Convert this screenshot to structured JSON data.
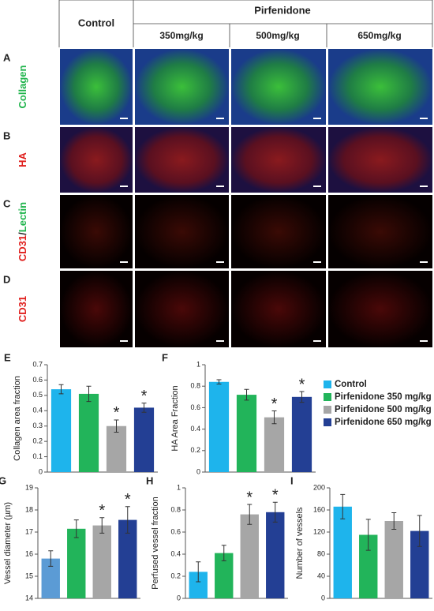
{
  "table": {
    "header": [
      "Control",
      "Pirfenidone"
    ],
    "doses": [
      "350mg/kg",
      "500mg/kg",
      "650mg/kg"
    ],
    "rows": [
      {
        "letter": "A",
        "label": [
          {
            "text": "Collagen",
            "color": "#1db34a"
          }
        ]
      },
      {
        "letter": "B",
        "label": [
          {
            "text": "HA",
            "color": "#e0201e"
          }
        ]
      },
      {
        "letter": "C",
        "label": [
          {
            "text": "CD31",
            "color": "#e0201e"
          },
          {
            "text": "/",
            "color": "#222222"
          },
          {
            "text": "Lectin",
            "color": "#1db34a"
          }
        ]
      },
      {
        "letter": "D",
        "label": [
          {
            "text": "CD31",
            "color": "#e0201e"
          }
        ]
      }
    ]
  },
  "legend": [
    {
      "name": "Control",
      "color": "#1eb4ec"
    },
    {
      "name": "Pirfenidone 350 mg/kg",
      "color": "#22b45a"
    },
    {
      "name": "Pirfenidone 500 mg/kg",
      "color": "#a6a6a6"
    },
    {
      "name": "Pirfenidone 650 mg/kg",
      "color": "#233f94"
    }
  ],
  "chart_data": [
    {
      "type": "bar",
      "panel": "E",
      "ylabel": "Collagen area fraction",
      "values": [
        0.54,
        0.51,
        0.3,
        0.42
      ],
      "errors": [
        0.03,
        0.05,
        0.04,
        0.03
      ],
      "colors": [
        "#1eb4ec",
        "#22b45a",
        "#a6a6a6",
        "#233f94"
      ],
      "ylim": [
        0,
        0.7
      ],
      "yticks": [
        0,
        0.1,
        0.2,
        0.3,
        0.4,
        0.5,
        0.6,
        0.7
      ],
      "annotations": [
        {
          "text": "*",
          "category": 2
        },
        {
          "text": "*",
          "category": 3
        }
      ]
    },
    {
      "type": "bar",
      "panel": "F",
      "ylabel": "HA Area Fraction",
      "values": [
        0.84,
        0.72,
        0.51,
        0.7
      ],
      "errors": [
        0.02,
        0.05,
        0.06,
        0.05
      ],
      "colors": [
        "#1eb4ec",
        "#22b45a",
        "#a6a6a6",
        "#233f94"
      ],
      "ylim": [
        0,
        1
      ],
      "yticks": [
        0,
        0.2,
        0.4,
        0.6,
        0.8,
        1
      ],
      "annotations": [
        {
          "text": "*",
          "category": 2
        },
        {
          "text": "*",
          "category": 3
        }
      ]
    },
    {
      "type": "bar",
      "panel": "G",
      "ylabel": "Vessel diameter (µm)",
      "values": [
        15.8,
        17.15,
        17.3,
        17.55
      ],
      "errors": [
        0.35,
        0.4,
        0.35,
        0.6
      ],
      "colors": [
        "#5b9bd5",
        "#22b45a",
        "#a6a6a6",
        "#233f94"
      ],
      "ylim": [
        14,
        19
      ],
      "yticks": [
        14,
        15,
        16,
        17,
        18,
        19
      ],
      "annotations": [
        {
          "text": "*",
          "category": 2
        },
        {
          "text": "*",
          "category": 3
        }
      ]
    },
    {
      "type": "bar",
      "panel": "H",
      "ylabel": "Perfused vessel fraction",
      "values": [
        0.24,
        0.41,
        0.76,
        0.78
      ],
      "errors": [
        0.09,
        0.07,
        0.09,
        0.09
      ],
      "colors": [
        "#1eb4ec",
        "#22b45a",
        "#a6a6a6",
        "#233f94"
      ],
      "ylim": [
        0,
        1
      ],
      "yticks": [
        0,
        0.2,
        0.4,
        0.6,
        0.8,
        1
      ],
      "annotations": [
        {
          "text": "*",
          "category": 2
        },
        {
          "text": "*",
          "category": 3
        }
      ]
    },
    {
      "type": "bar",
      "panel": "I",
      "ylabel": "Number of vessels",
      "values": [
        166,
        115,
        140,
        122
      ],
      "errors": [
        22,
        28,
        15,
        28
      ],
      "colors": [
        "#1eb4ec",
        "#22b45a",
        "#a6a6a6",
        "#233f94"
      ],
      "ylim": [
        0,
        200
      ],
      "yticks": [
        0,
        40,
        80,
        120,
        160,
        200
      ]
    }
  ]
}
